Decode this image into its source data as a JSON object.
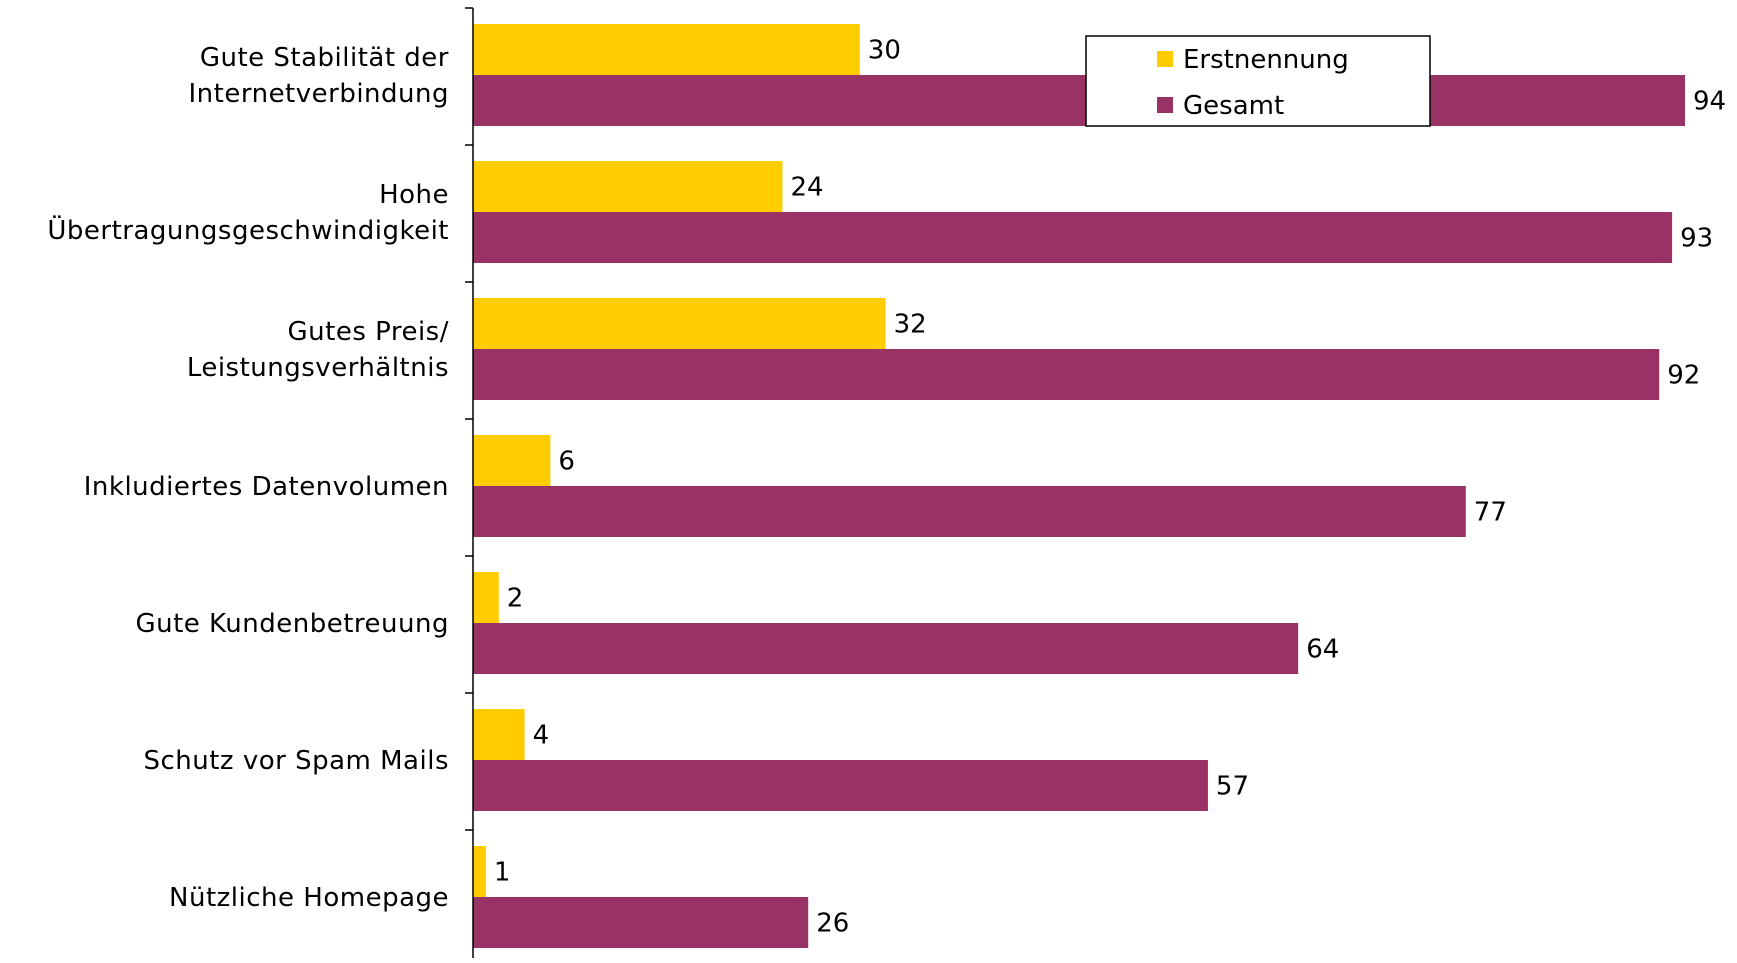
{
  "chart_data": {
    "type": "bar",
    "orientation": "horizontal",
    "categories": [
      [
        "Gute Stabilität der",
        "Internetverbindung"
      ],
      [
        "Hohe",
        "Übertragungsgeschwindigkeit"
      ],
      [
        "Gutes Preis/",
        "Leistungsverhältnis"
      ],
      [
        "Inkludiertes Datenvolumen"
      ],
      [
        "Gute Kundenbetreuung"
      ],
      [
        "Schutz vor Spam Mails"
      ],
      [
        "Nützliche Homepage"
      ]
    ],
    "series": [
      {
        "name": "Erstnennung",
        "color": "#FFCC00",
        "values": [
          30,
          24,
          32,
          6,
          2,
          4,
          1
        ]
      },
      {
        "name": "Gesamt",
        "color": "#993366",
        "values": [
          94,
          93,
          92,
          77,
          64,
          57,
          26
        ]
      }
    ],
    "xlim": [
      0,
      100
    ],
    "grid": false,
    "legend_position": "top-right",
    "title": "",
    "xlabel": "",
    "ylabel": ""
  }
}
